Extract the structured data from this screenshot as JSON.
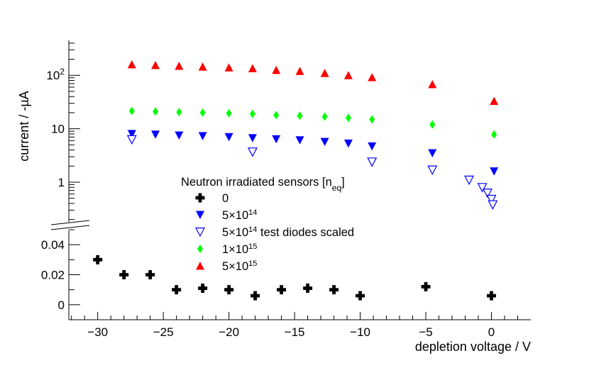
{
  "chart_data": {
    "type": "scatter",
    "xlabel": "depletion voltage / V",
    "ylabel": "current / -µA",
    "xlim": [
      -32.2,
      3
    ],
    "x_ticks": [
      -30,
      -25,
      -20,
      -15,
      -10,
      -5,
      0
    ],
    "y_upper": {
      "scale": "log",
      "ylim": [
        0.17,
        450
      ],
      "tick_labels": [
        {
          "value": 1,
          "base": "1",
          "sup": ""
        },
        {
          "value": 10,
          "base": "10",
          "sup": ""
        },
        {
          "value": 100,
          "base": "10",
          "sup": "2"
        }
      ]
    },
    "y_lower": {
      "scale": "linear",
      "ylim": [
        -0.01,
        0.05
      ],
      "tick_labels": [
        {
          "value": 0,
          "text": "0"
        },
        {
          "value": 0.02,
          "text": "0.02"
        },
        {
          "value": 0.04,
          "text": "0.04"
        }
      ]
    },
    "legend": {
      "title_main": "Neutron irradiated sensors [n",
      "title_sub": "eq",
      "title_end": "]",
      "placement": "center"
    },
    "series": [
      {
        "name_main": "0",
        "name_sup": "",
        "name_tail": "",
        "marker": "cross",
        "color": "#000000",
        "panel": "lower",
        "x": [
          -30,
          -28,
          -26,
          -24,
          -22,
          -20,
          -18,
          -16,
          -14,
          -12,
          -10,
          -5,
          0
        ],
        "y": [
          0.03,
          0.02,
          0.02,
          0.01,
          0.011,
          0.01,
          0.006,
          0.01,
          0.011,
          0.01,
          0.006,
          0.012,
          0.006
        ]
      },
      {
        "name_main": "5×10",
        "name_sup": "14",
        "name_tail": "",
        "marker": "triangle-down-filled",
        "color": "#0000ff",
        "panel": "upper",
        "x": [
          -27.4,
          -25.6,
          -23.8,
          -22,
          -20,
          -18.2,
          -16.4,
          -14.6,
          -12.7,
          -10.9,
          -9.1,
          -4.5,
          0.2
        ],
        "y": [
          8.0,
          7.8,
          7.5,
          7.3,
          7.0,
          6.7,
          6.4,
          6.1,
          5.7,
          5.3,
          4.7,
          3.5,
          1.6
        ]
      },
      {
        "name_main": "5×10",
        "name_sup": "14",
        "name_tail": " test diodes scaled",
        "marker": "triangle-down-open",
        "color": "#0000ff",
        "panel": "upper",
        "x": [
          -27.4,
          -18.2,
          -9.1,
          -4.5,
          -1.7,
          -0.7,
          -0.3,
          0,
          0.1
        ],
        "y": [
          6.3,
          3.7,
          2.4,
          1.7,
          1.1,
          0.8,
          0.63,
          0.48,
          0.38
        ]
      },
      {
        "name_main": "1×10",
        "name_sup": "15",
        "name_tail": "",
        "marker": "diamond",
        "color": "#00ff00",
        "panel": "upper",
        "x": [
          -27.4,
          -25.6,
          -23.8,
          -22,
          -20,
          -18.2,
          -16.4,
          -14.6,
          -12.7,
          -10.9,
          -9.1,
          -4.5,
          0.2
        ],
        "y": [
          21.5,
          21,
          20.5,
          20,
          19.5,
          19,
          18,
          17.5,
          16.8,
          16,
          15,
          12,
          7.8
        ]
      },
      {
        "name_main": "5×10",
        "name_sup": "15",
        "name_tail": "",
        "marker": "triangle-up-filled",
        "color": "#ff0000",
        "panel": "upper",
        "x": [
          -27.4,
          -25.6,
          -23.8,
          -22,
          -20,
          -18.2,
          -16.4,
          -14.6,
          -12.7,
          -10.9,
          -9.1,
          -4.5,
          0.2
        ],
        "y": [
          160,
          155,
          150,
          145,
          140,
          135,
          125,
          120,
          110,
          100,
          92,
          68,
          33
        ]
      }
    ]
  }
}
